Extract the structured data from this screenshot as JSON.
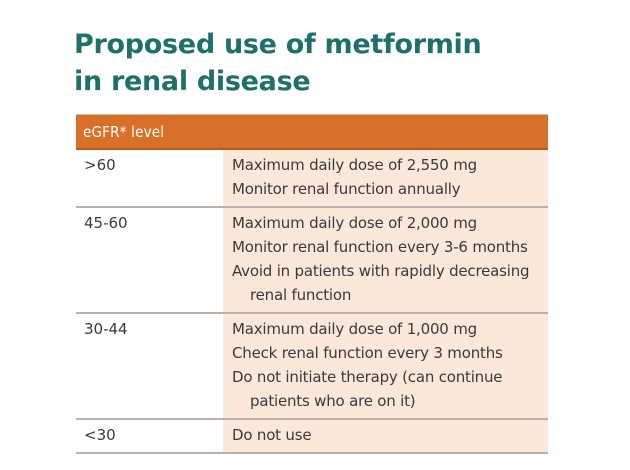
{
  "title": {
    "line1": "Proposed use of metformin",
    "line2": "in renal disease"
  },
  "table": {
    "header": "eGFR* level",
    "rows": [
      {
        "level": ">60",
        "items": [
          [
            "Maximum daily dose of 2,550 mg"
          ],
          [
            "Monitor renal function annually"
          ]
        ]
      },
      {
        "level": "45-60",
        "items": [
          [
            "Maximum daily dose of 2,000 mg"
          ],
          [
            "Monitor renal function every 3-6 months"
          ],
          [
            "Avoid in patients with rapidly decreasing",
            "renal function"
          ]
        ]
      },
      {
        "level": "30-44",
        "items": [
          [
            "Maximum daily dose of 1,000 mg"
          ],
          [
            "Check renal function every 3 months"
          ],
          [
            "Do not initiate therapy (can continue",
            "patients who are on it)"
          ]
        ]
      },
      {
        "level": "<30",
        "items": [
          [
            "Do not use"
          ]
        ]
      }
    ]
  },
  "colors": {
    "title": "#1f6f6a",
    "header_bg": "#d9702a",
    "recommendation_bg": "#fbe8da",
    "rule": "#b9b1ab"
  }
}
